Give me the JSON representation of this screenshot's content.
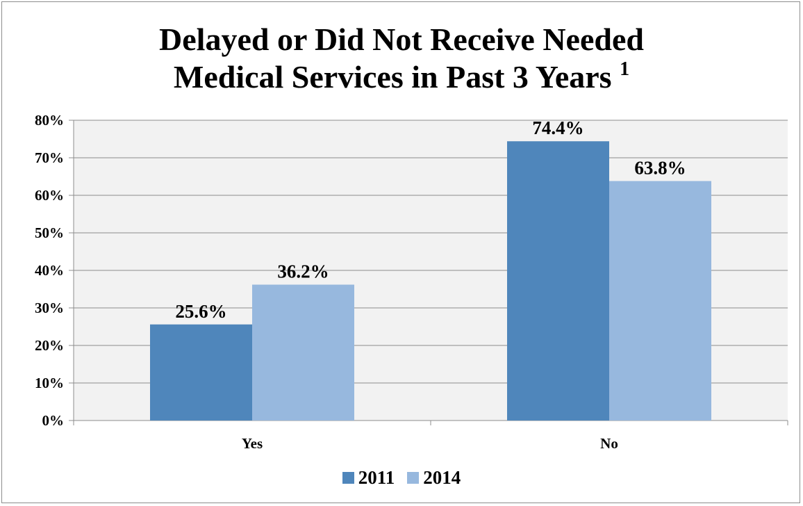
{
  "chart_data": {
    "type": "bar",
    "title_line1": "Delayed or Did Not Receive Needed",
    "title_line2": "Medical Services in Past 3 Years",
    "title_superscript": "1",
    "categories": [
      "Yes",
      "No"
    ],
    "series": [
      {
        "name": "2011",
        "values": [
          25.6,
          74.4
        ],
        "labels": [
          "25.6%",
          "74.4%"
        ],
        "color": "#4f86bb"
      },
      {
        "name": "2014",
        "values": [
          36.2,
          63.8
        ],
        "labels": [
          "36.2%",
          "63.8%"
        ],
        "color": "#97b8de"
      }
    ],
    "ylim": [
      0,
      80
    ],
    "yticks": [
      {
        "value": 0,
        "label": "0%"
      },
      {
        "value": 10,
        "label": "10%"
      },
      {
        "value": 20,
        "label": "20%"
      },
      {
        "value": 30,
        "label": "30%"
      },
      {
        "value": 40,
        "label": "40%"
      },
      {
        "value": 50,
        "label": "50%"
      },
      {
        "value": 60,
        "label": "60%"
      },
      {
        "value": 70,
        "label": "70%"
      },
      {
        "value": 80,
        "label": "80%"
      }
    ],
    "grid": true,
    "plot_background": "#f2f2f2",
    "legend_position": "bottom"
  }
}
